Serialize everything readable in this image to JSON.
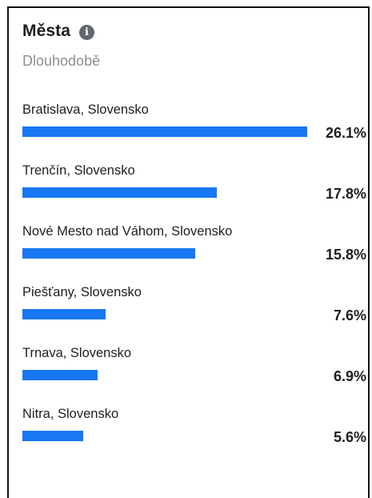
{
  "widget": {
    "title": "Města",
    "info_icon": "info-icon",
    "subtitle": "Dlouhodobě"
  },
  "cities": [
    {
      "label": "Bratislava, Slovensko",
      "percent_text": "26.1%",
      "value": 26.1
    },
    {
      "label": "Trenčín, Slovensko",
      "percent_text": "17.8%",
      "value": 17.8
    },
    {
      "label": "Nové Mesto nad Váhom, Slovensko",
      "percent_text": "15.8%",
      "value": 15.8
    },
    {
      "label": "Piešťany, Slovensko",
      "percent_text": "7.6%",
      "value": 7.6
    },
    {
      "label": "Trnava, Slovensko",
      "percent_text": "6.9%",
      "value": 6.9
    },
    {
      "label": "Nitra, Slovensko",
      "percent_text": "5.6%",
      "value": 5.6
    }
  ],
  "colors": {
    "bar": "#1877f2",
    "subtitle": "#8a8d91",
    "icon": "#606770"
  }
}
